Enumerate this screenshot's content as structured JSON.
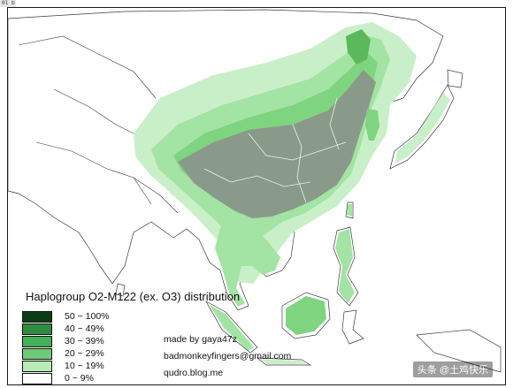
{
  "corner_tag": "01 ⊡",
  "map": {
    "title": "Haplogroup O2-M122 (ex. O3) distribution",
    "colors": {
      "land": "#ffffff",
      "sea": "#ffffff",
      "border": "#3a3a3a",
      "band_10_19": "#c9efc9",
      "band_20_29": "#a3e3a3",
      "band_30_39": "#7fd47f",
      "band_40_49": "#5bb85b",
      "band_50_100": "#8a9a8a"
    }
  },
  "legend": {
    "items": [
      {
        "label": "50 ~ 100%",
        "color": "#0d3d17"
      },
      {
        "label": "40 ~ 49%",
        "color": "#2e8b3f"
      },
      {
        "label": "30 ~ 39%",
        "color": "#43b057"
      },
      {
        "label": "20 ~ 29%",
        "color": "#6fca78"
      },
      {
        "label": "10 ~ 19%",
        "color": "#b9ebb9"
      },
      {
        "label": "0 ~ 9%",
        "color": "#ffffff"
      }
    ]
  },
  "credits": {
    "author": "made by gaya47z",
    "email": "badmonkeyfingers@gmail.com",
    "blog": "qudro.blog.me"
  },
  "watermark": "头条 @土鸡快乐"
}
